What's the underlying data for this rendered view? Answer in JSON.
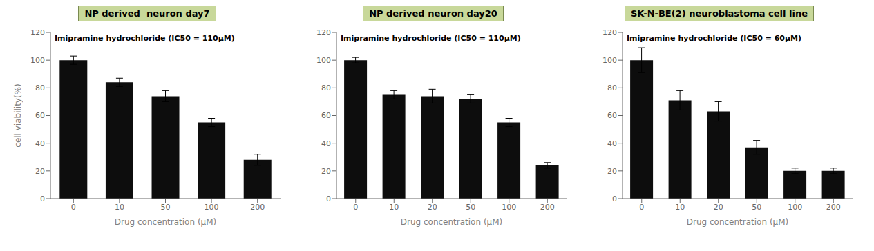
{
  "chart_data": [
    {
      "type": "bar",
      "title": "NP derived  neuron day7",
      "annotation": "Imipramine hydrochloride (IC50 = 110μM)",
      "xlabel": "Drug concentration  (μM)",
      "ylabel": "cell viability(%)",
      "categories": [
        "0",
        "10",
        "50",
        "100",
        "200"
      ],
      "values": [
        100,
        84,
        74,
        55,
        28
      ],
      "errors": [
        3,
        3,
        4,
        3,
        4
      ],
      "color": "#0d0d0d",
      "ylim": [
        0,
        120
      ],
      "yticks": [
        0,
        20,
        40,
        60,
        80,
        100,
        120
      ],
      "grid": false
    },
    {
      "type": "bar",
      "title": "NP derived neuron day20",
      "annotation": "Imipramine hydrochloride (IC50 = 110μM)",
      "xlabel": "Drug concentration  (μM)",
      "categories": [
        "0",
        "10",
        "20",
        "50",
        "100",
        "200"
      ],
      "values": [
        100,
        75,
        74,
        72,
        55,
        24
      ],
      "errors": [
        2,
        3,
        5,
        3,
        3,
        2
      ],
      "color": "#0d0d0d",
      "ylim": [
        0,
        120
      ],
      "yticks": [
        0,
        20,
        40,
        60,
        80,
        100,
        120
      ],
      "grid": false
    },
    {
      "type": "bar",
      "title": "SK-N-BE(2) neuroblastoma cell line",
      "annotation": "Imipramine hydrochloride (IC50 = 60μM)",
      "xlabel": "Drug concentration  (μM)",
      "categories": [
        "0",
        "10",
        "20",
        "50",
        "100",
        "200"
      ],
      "values": [
        100,
        71,
        63,
        37,
        20,
        20
      ],
      "errors": [
        9,
        7,
        7,
        5,
        2,
        2
      ],
      "color": "#0d0d0d",
      "ylim": [
        0,
        120
      ],
      "yticks": [
        0,
        20,
        40,
        60,
        80,
        100,
        120
      ],
      "grid": false
    }
  ]
}
